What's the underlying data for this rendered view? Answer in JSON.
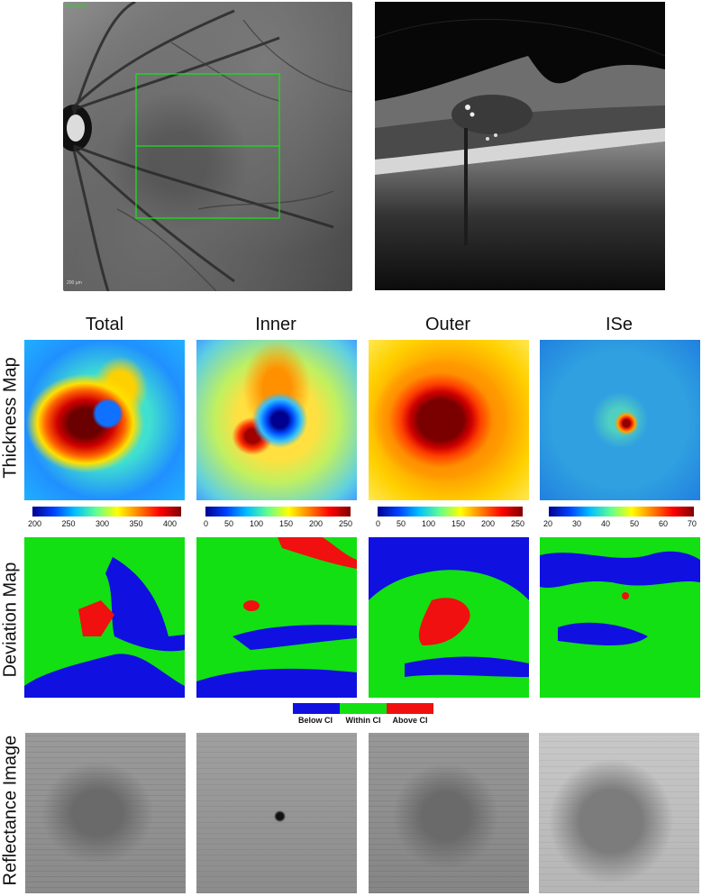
{
  "top": {
    "fundus_label": "30° ART",
    "fundus_scale": "200 μm"
  },
  "columns": [
    "Total",
    "Inner",
    "Outer",
    "ISe"
  ],
  "rows": {
    "thickness": "Thickness Map",
    "deviation": "Deviation Map",
    "reflectance": "Reflectance Image"
  },
  "colorbars": [
    {
      "ticks": [
        "200",
        "250",
        "300",
        "350",
        "400"
      ]
    },
    {
      "ticks": [
        "0",
        "50",
        "100",
        "150",
        "200",
        "250"
      ]
    },
    {
      "ticks": [
        "0",
        "50",
        "100",
        "150",
        "200",
        "250"
      ]
    },
    {
      "ticks": [
        "20",
        "30",
        "40",
        "50",
        "60",
        "70"
      ]
    }
  ],
  "legend": {
    "below": {
      "label": "Below CI",
      "color": "#1010e0"
    },
    "within": {
      "label": "Within CI",
      "color": "#12e012"
    },
    "above": {
      "label": "Above CI",
      "color": "#f01010"
    }
  },
  "colors": {
    "fundus_box": "#19e019",
    "map_green": "#12e012",
    "map_blue": "#1010e0",
    "map_red": "#f01010"
  }
}
